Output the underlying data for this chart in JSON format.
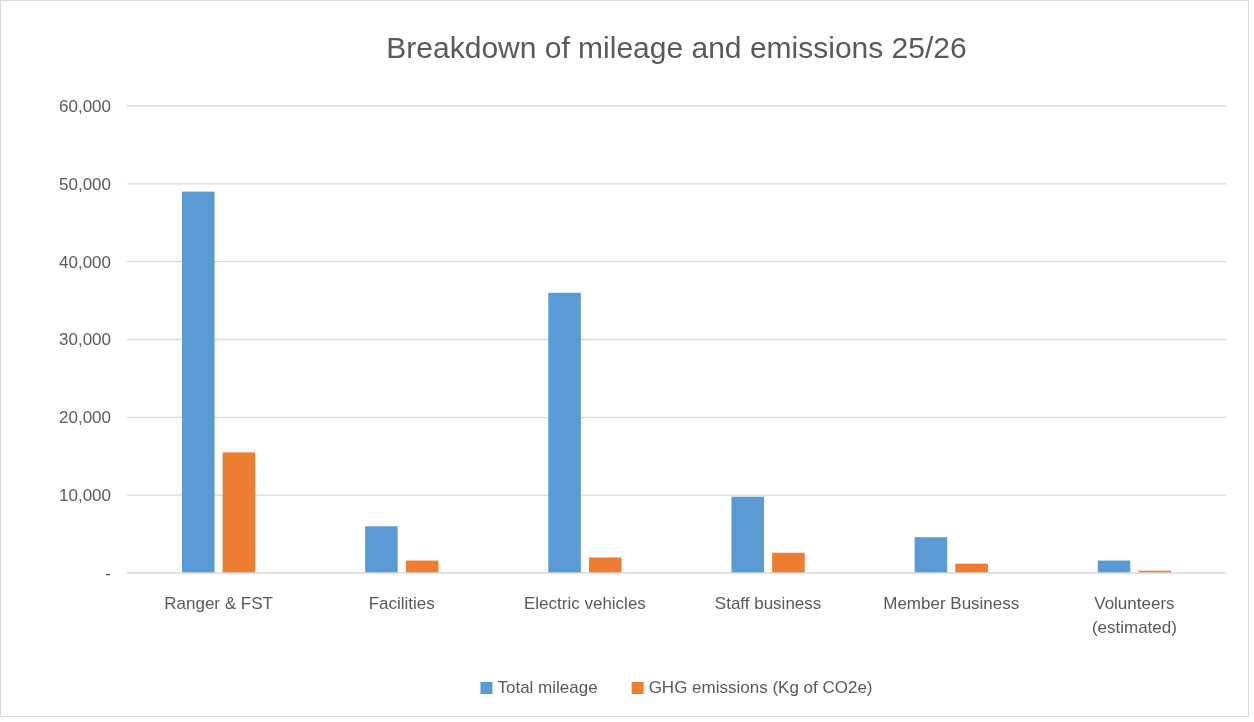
{
  "chart_data": {
    "type": "bar",
    "title": "Breakdown of mileage and emissions 25/26",
    "categories": [
      "Ranger & FST",
      "Facilities",
      "Electric vehicles",
      "Staff business",
      "Member Business",
      "Volunteers (estimated)"
    ],
    "series": [
      {
        "name": "Total mileage",
        "color": "#5b9bd5",
        "values": [
          49000,
          6000,
          36000,
          9800,
          4600,
          1600
        ]
      },
      {
        "name": "GHG emissions (Kg of CO2e)",
        "color": "#ed7d31",
        "values": [
          15500,
          1600,
          2000,
          2600,
          1200,
          300
        ]
      }
    ],
    "ylim": [
      0,
      60000
    ],
    "yticks": [
      {
        "value": 0,
        "label": "-"
      },
      {
        "value": 10000,
        "label": "10,000"
      },
      {
        "value": 20000,
        "label": "20,000"
      },
      {
        "value": 30000,
        "label": "30,000"
      },
      {
        "value": 40000,
        "label": "40,000"
      },
      {
        "value": 50000,
        "label": "50,000"
      },
      {
        "value": 60000,
        "label": "60,000"
      }
    ],
    "grid": "y",
    "legend": "bottom"
  }
}
